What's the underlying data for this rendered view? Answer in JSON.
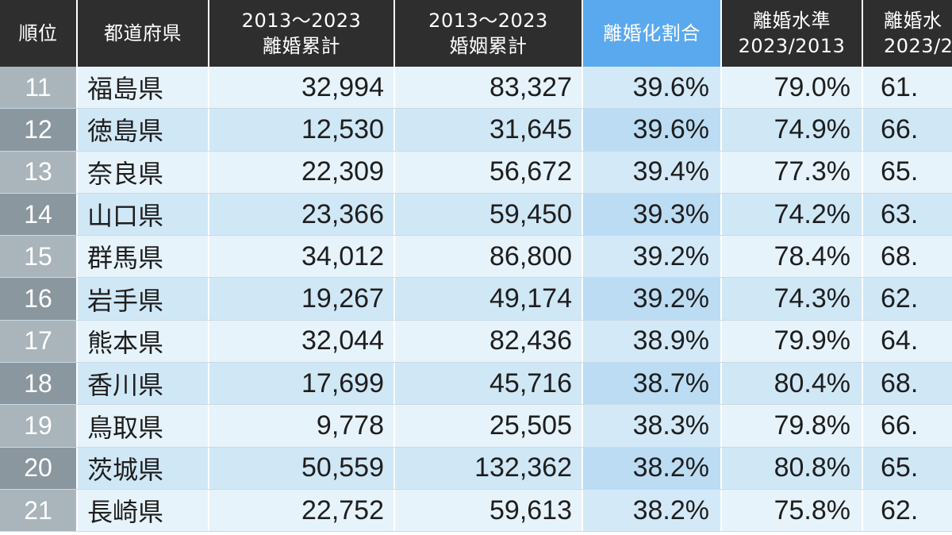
{
  "headers": {
    "rank": "順位",
    "prefecture": "都道府県",
    "divorce_total_l1": "2013〜2023",
    "divorce_total_l2": "離婚累計",
    "marriage_total_l1": "2013〜2023",
    "marriage_total_l2": "婚姻累計",
    "divorce_rate": "離婚化割合",
    "divorce_level_l1": "離婚水準",
    "divorce_level_l2": "2023/2013",
    "col7_l1": "離婚水",
    "col7_l2": "2023/2"
  },
  "rows": [
    {
      "rank": "11",
      "prefecture": "福島県",
      "divorce_total": "32,994",
      "marriage_total": "83,327",
      "divorce_rate": "39.6%",
      "divorce_level": "79.0%",
      "col7": "61."
    },
    {
      "rank": "12",
      "prefecture": "徳島県",
      "divorce_total": "12,530",
      "marriage_total": "31,645",
      "divorce_rate": "39.6%",
      "divorce_level": "74.9%",
      "col7": "66."
    },
    {
      "rank": "13",
      "prefecture": "奈良県",
      "divorce_total": "22,309",
      "marriage_total": "56,672",
      "divorce_rate": "39.4%",
      "divorce_level": "77.3%",
      "col7": "65."
    },
    {
      "rank": "14",
      "prefecture": "山口県",
      "divorce_total": "23,366",
      "marriage_total": "59,450",
      "divorce_rate": "39.3%",
      "divorce_level": "74.2%",
      "col7": "63."
    },
    {
      "rank": "15",
      "prefecture": "群馬県",
      "divorce_total": "34,012",
      "marriage_total": "86,800",
      "divorce_rate": "39.2%",
      "divorce_level": "78.4%",
      "col7": "68."
    },
    {
      "rank": "16",
      "prefecture": "岩手県",
      "divorce_total": "19,267",
      "marriage_total": "49,174",
      "divorce_rate": "39.2%",
      "divorce_level": "74.3%",
      "col7": "62."
    },
    {
      "rank": "17",
      "prefecture": "熊本県",
      "divorce_total": "32,044",
      "marriage_total": "82,436",
      "divorce_rate": "38.9%",
      "divorce_level": "79.9%",
      "col7": "64."
    },
    {
      "rank": "18",
      "prefecture": "香川県",
      "divorce_total": "17,699",
      "marriage_total": "45,716",
      "divorce_rate": "38.7%",
      "divorce_level": "80.4%",
      "col7": "68."
    },
    {
      "rank": "19",
      "prefecture": "鳥取県",
      "divorce_total": "9,778",
      "marriage_total": "25,505",
      "divorce_rate": "38.3%",
      "divorce_level": "79.8%",
      "col7": "66."
    },
    {
      "rank": "20",
      "prefecture": "茨城県",
      "divorce_total": "50,559",
      "marriage_total": "132,362",
      "divorce_rate": "38.2%",
      "divorce_level": "80.8%",
      "col7": "65."
    },
    {
      "rank": "21",
      "prefecture": "長崎県",
      "divorce_total": "22,752",
      "marriage_total": "59,613",
      "divorce_rate": "38.2%",
      "divorce_level": "75.8%",
      "col7": "62."
    }
  ],
  "colors": {
    "header_bg": "#2e2e2e",
    "header_highlight": "#5aa9ee",
    "row_light": "#e7f3fb",
    "row_dark": "#d0e7f6",
    "rank_light": "#a9b4bb",
    "rank_dark": "#8b979f"
  }
}
